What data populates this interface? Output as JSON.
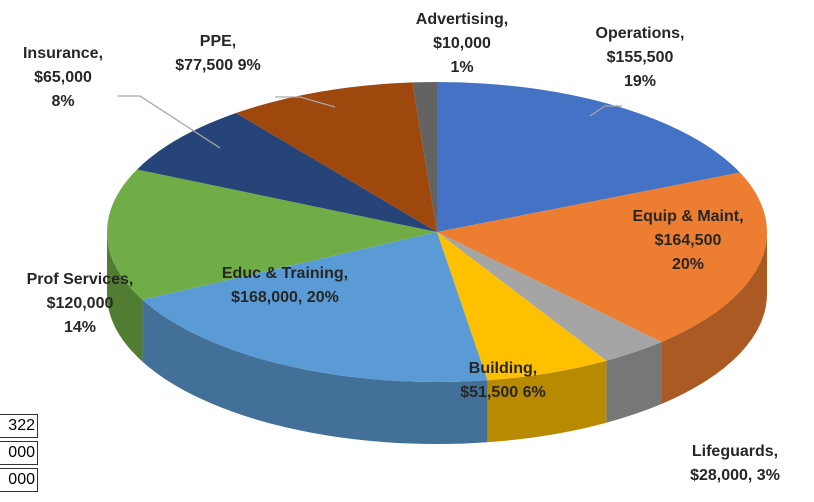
{
  "chart_data": {
    "type": "pie",
    "categories": [
      "Operations,",
      "Equip & Maint,",
      "Lifeguards,",
      "Building,",
      "Educ & Training,",
      "Prof Services,",
      "Insurance,",
      "PPE,",
      "Advertising,"
    ],
    "values": [
      155500,
      164500,
      28000,
      51500,
      168000,
      120000,
      65000,
      77500,
      10000
    ],
    "value_labels": [
      "$155,500",
      "$164,500",
      "$28,000,",
      "$51,500",
      "$168,000,",
      "$120,000",
      "$65,000",
      "$77,500",
      "$10,000"
    ],
    "percents": [
      19,
      20,
      3,
      6,
      20,
      14,
      8,
      9,
      1
    ],
    "percent_labels": [
      "19%",
      "20%",
      "3%",
      "6%",
      "20%",
      "14%",
      "8%",
      "9%",
      "1%"
    ],
    "colors": [
      "#4472c4",
      "#ed7d31",
      "#a5a5a5",
      "#ffc000",
      "#5b9bd5",
      "#70ad47",
      "#264478",
      "#9e480e",
      "#636363"
    ]
  },
  "side_table": {
    "cells": [
      "322",
      "000",
      "000"
    ]
  }
}
